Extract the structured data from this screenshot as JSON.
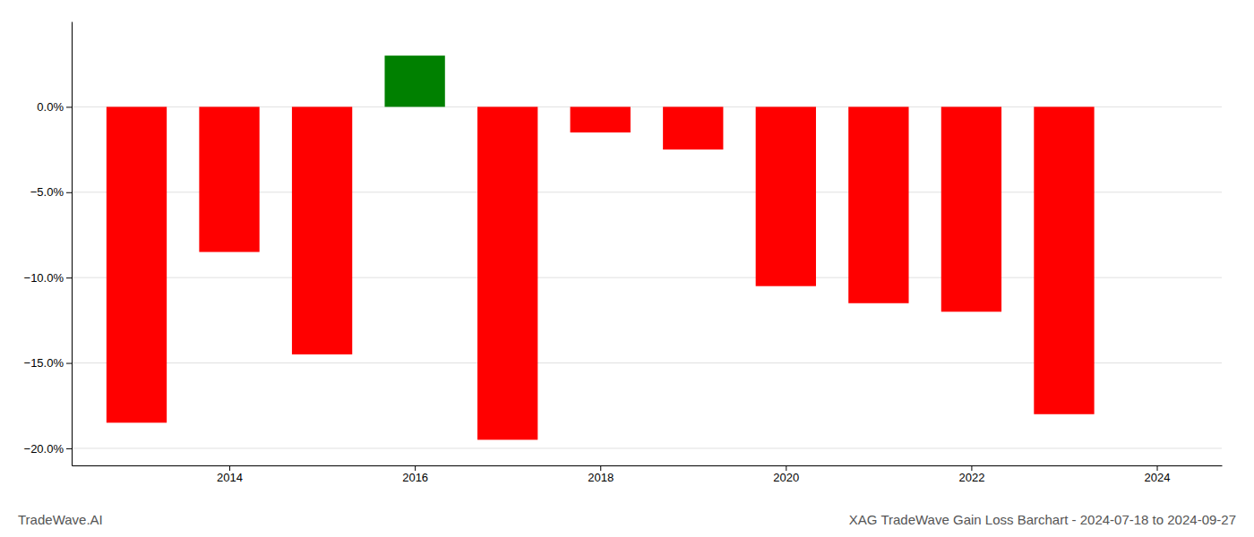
{
  "chart_data": {
    "type": "bar",
    "title": "XAG TradeWave Gain Loss Barchart - 2024-07-18 to 2024-09-27",
    "annotations": [
      "TradeWave.AI"
    ],
    "x": [
      2013,
      2014,
      2015,
      2016,
      2017,
      2018,
      2019,
      2020,
      2021,
      2022,
      2023
    ],
    "values": [
      -18.5,
      -8.5,
      -14.5,
      3.0,
      -19.5,
      -1.5,
      -2.5,
      -10.5,
      -11.5,
      -12.0,
      -18.0
    ],
    "colors": [
      "#ff0000",
      "#ff0000",
      "#ff0000",
      "#008000",
      "#ff0000",
      "#ff0000",
      "#ff0000",
      "#ff0000",
      "#ff0000",
      "#ff0000",
      "#ff0000"
    ],
    "xlim": [
      2012.3,
      2024.7
    ],
    "xticks": [
      2014,
      2016,
      2018,
      2020,
      2022,
      2024
    ],
    "ylim": [
      -21.0,
      5.0
    ],
    "yticks": [
      {
        "value": 0.0,
        "label": "0.0%"
      },
      {
        "value": -5.0,
        "label": "−5.0%"
      },
      {
        "value": -10.0,
        "label": "−10.0%"
      },
      {
        "value": -15.0,
        "label": "−15.0%"
      },
      {
        "value": -20.0,
        "label": "−20.0%"
      }
    ],
    "grid": true
  }
}
